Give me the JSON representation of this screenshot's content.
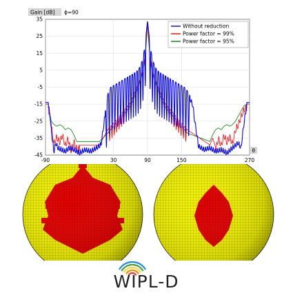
{
  "chart_data": {
    "type": "line",
    "ylabel": "Gain [dB]",
    "angle_label": "ϕ=90",
    "theta_label": "θ",
    "xlim": [
      -90,
      270
    ],
    "ylim": [
      -45,
      35
    ],
    "xticks": [
      -90,
      30,
      90,
      150,
      270
    ],
    "yticks": [
      35,
      25,
      15,
      5,
      -5,
      -15,
      -25,
      -35,
      -45
    ],
    "grid": true,
    "legend_position": "top-right",
    "series": [
      {
        "name": "Without reduction",
        "color": "#0000ff",
        "x": [
          -90,
          -85,
          -82,
          -78,
          -75,
          -72,
          -68,
          -62,
          -55,
          -48,
          -40,
          -30,
          -20,
          -10,
          0,
          8,
          15,
          20,
          25,
          30,
          35,
          40,
          45,
          50,
          55,
          60,
          65,
          70,
          75,
          80,
          85,
          88,
          90,
          92,
          95,
          100,
          105,
          110,
          115,
          120,
          125,
          130,
          135,
          140,
          145,
          150,
          155,
          160,
          165,
          170,
          172,
          180,
          190,
          200,
          210,
          220,
          230,
          240,
          250,
          255,
          258,
          262,
          265,
          270
        ],
        "y": [
          -14,
          -14,
          -20,
          -34,
          -41,
          -36,
          -39,
          -40,
          -41,
          -39,
          -40,
          -42,
          -40,
          -41,
          -39,
          -37,
          -20,
          -9,
          -5,
          -4,
          -3,
          -2,
          -1,
          0,
          1,
          2,
          3,
          4,
          6,
          10,
          18,
          28,
          34,
          28,
          18,
          10,
          6,
          4,
          3,
          2,
          1,
          0,
          -1,
          -2,
          -3,
          -4,
          -5,
          -7,
          -10,
          -14,
          -20,
          -38,
          -40,
          -39,
          -41,
          -40,
          -42,
          -39,
          -36,
          -39,
          -30,
          -20,
          -14,
          -14
        ]
      },
      {
        "name": "Power factor = 99%",
        "color": "#ff0000",
        "x": [
          -90,
          -85,
          -80,
          -75,
          -70,
          -65,
          -60,
          -55,
          -50,
          -45,
          -40,
          -35,
          5,
          20,
          30,
          40,
          50,
          60,
          65,
          70,
          75,
          80,
          85,
          88,
          90,
          92,
          95,
          100,
          105,
          110,
          115,
          120,
          130,
          140,
          150,
          160,
          200,
          205,
          210,
          215,
          220,
          225,
          230,
          235,
          240,
          245,
          250,
          255,
          260,
          265,
          270
        ],
        "y": [
          -15,
          -15,
          -25,
          -36,
          -32,
          -35,
          -31,
          -37,
          -33,
          -40,
          -35,
          -39,
          -39,
          -30,
          -26,
          -22,
          -18,
          -14,
          -10,
          -6,
          -2,
          3,
          12,
          25,
          33,
          25,
          12,
          3,
          -2,
          -6,
          -10,
          -14,
          -18,
          -22,
          -26,
          -30,
          -39,
          -35,
          -40,
          -33,
          -37,
          -31,
          -35,
          -32,
          -36,
          -28,
          -25,
          -20,
          -16,
          -15,
          -15
        ]
      },
      {
        "name": "Power factor = 95%",
        "color": "#008000",
        "x": [
          -90,
          -85,
          -80,
          -75,
          -70,
          -65,
          -60,
          -55,
          -50,
          -45,
          -40,
          -35,
          5,
          20,
          30,
          40,
          50,
          60,
          65,
          70,
          75,
          80,
          85,
          88,
          90,
          92,
          95,
          100,
          105,
          110,
          115,
          120,
          130,
          140,
          150,
          160,
          200,
          205,
          210,
          215,
          220,
          225,
          230,
          235,
          240,
          245,
          250,
          255,
          260,
          265,
          270
        ],
        "y": [
          -15,
          -15,
          -25,
          -27,
          -28,
          -27,
          -28,
          -30,
          -29,
          -30,
          -33,
          -37,
          -37,
          -32,
          -28,
          -24,
          -20,
          -16,
          -12,
          -8,
          -3,
          2,
          10,
          22,
          32,
          22,
          10,
          2,
          -3,
          -8,
          -12,
          -16,
          -20,
          -24,
          -28,
          -32,
          -37,
          -33,
          -30,
          -29,
          -30,
          -28,
          -27,
          -28,
          -27,
          -25,
          -22,
          -19,
          -16,
          -15,
          -15
        ]
      }
    ]
  },
  "logo": {
    "text": "WIPL-D",
    "colors": [
      "#e53935",
      "#fb8c00",
      "#fdd835",
      "#43a047",
      "#1e88e5"
    ]
  },
  "spheres": {
    "surface_color": "#f2f200",
    "patch_color": "#e00000"
  }
}
